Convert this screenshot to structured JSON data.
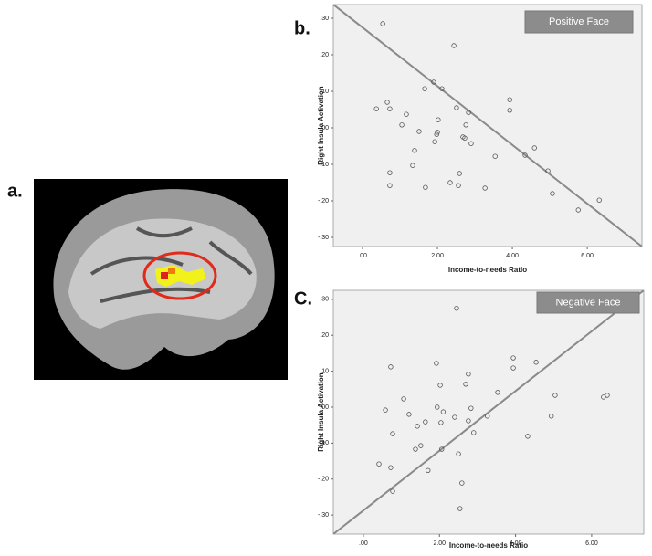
{
  "panel_labels": [
    "a.",
    "b.",
    "C."
  ],
  "chart_data": [
    {
      "type": "scatter",
      "title": "Positive Face",
      "x_label": "Income-to-needs Ratio",
      "y_label": "Right Insula Activation",
      "x": [
        0.54,
        2.44,
        1.9,
        0.66,
        1.66,
        2.12,
        3.93,
        0.73,
        0.37,
        2.51,
        1.17,
        2.83,
        3.93,
        2.02,
        1.05,
        2.76,
        2.0,
        1.98,
        1.51,
        2.68,
        2.73,
        2.9,
        1.93,
        4.59,
        1.39,
        3.54,
        4.34,
        1.34,
        4.95,
        0.73,
        2.59,
        2.34,
        2.56,
        1.68,
        0.73,
        3.27,
        5.07,
        6.32,
        5.76
      ],
      "y": [
        0.285,
        0.225,
        0.125,
        0.07,
        0.107,
        0.107,
        0.077,
        0.052,
        0.052,
        0.055,
        0.037,
        0.042,
        0.048,
        0.022,
        0.008,
        0.008,
        -0.012,
        -0.018,
        -0.01,
        -0.025,
        -0.028,
        -0.043,
        -0.038,
        -0.055,
        -0.062,
        -0.078,
        -0.075,
        -0.103,
        -0.118,
        -0.123,
        -0.125,
        -0.15,
        -0.158,
        -0.163,
        -0.158,
        -0.165,
        -0.18,
        -0.198,
        -0.225
      ],
      "fit_line": {
        "x": [
          -0.78,
          7.46
        ],
        "y": [
          0.3375,
          -0.325
        ]
      },
      "xlim": [
        -0.78,
        7.46
      ],
      "ylim": [
        -0.325,
        0.3375
      ],
      "xticks": [
        {
          "value": 0,
          "label": ".00"
        },
        {
          "value": 2,
          "label": "2.00"
        },
        {
          "value": 4,
          "label": "4.00"
        },
        {
          "value": 6,
          "label": "6.00"
        }
      ],
      "yticks": [
        {
          "value": 0.3,
          "label": ".30"
        },
        {
          "value": 0.2,
          "label": ".20"
        },
        {
          "value": 0.1,
          "label": ".10"
        },
        {
          "value": 0,
          "label": ".00"
        },
        {
          "value": -0.1,
          "label": "-.10"
        },
        {
          "value": -0.2,
          "label": "-.20"
        },
        {
          "value": -0.3,
          "label": "-.30"
        }
      ],
      "grid": false,
      "color": "#555555",
      "line_color": "#8a8a8a"
    },
    {
      "type": "scatter",
      "title": "Negative Face",
      "x_label": "Income-to-needs Ratio",
      "y_label": "Right Insula Activation",
      "x": [
        2.45,
        0.72,
        3.94,
        1.92,
        4.54,
        3.94,
        2.76,
        2.69,
        2.02,
        3.53,
        1.06,
        5.04,
        6.41,
        6.31,
        1.2,
        0.58,
        1.94,
        2.1,
        2.83,
        3.26,
        4.94,
        2.4,
        1.63,
        2.04,
        2.76,
        1.42,
        0.77,
        2.9,
        4.32,
        1.51,
        1.37,
        2.06,
        2.5,
        0.41,
        1.7,
        0.72,
        0.77,
        2.59,
        2.54
      ],
      "y": [
        0.275,
        0.112,
        0.137,
        0.122,
        0.125,
        0.109,
        0.092,
        0.064,
        0.061,
        0.041,
        0.023,
        0.033,
        0.033,
        0.028,
        -0.02,
        -0.008,
        0,
        -0.013,
        -0.003,
        -0.025,
        -0.025,
        -0.028,
        -0.041,
        -0.043,
        -0.038,
        -0.053,
        -0.074,
        -0.071,
        -0.081,
        -0.107,
        -0.117,
        -0.117,
        -0.13,
        -0.158,
        -0.176,
        -0.168,
        -0.234,
        -0.211,
        -0.282
      ],
      "fit_line": {
        "x": [
          -0.79,
          7.37
        ],
        "y": [
          -0.353,
          0.325
        ]
      },
      "xlim": [
        -0.79,
        7.37
      ],
      "ylim": [
        -0.353,
        0.325
      ],
      "xticks": [
        {
          "value": 0,
          "label": ".00"
        },
        {
          "value": 2,
          "label": "2.00"
        },
        {
          "value": 4,
          "label": "4.00"
        },
        {
          "value": 6,
          "label": "6.00"
        }
      ],
      "yticks": [
        {
          "value": 0.3,
          "label": ".30"
        },
        {
          "value": 0.2,
          "label": ".20"
        },
        {
          "value": 0.1,
          "label": ".10"
        },
        {
          "value": 0,
          "label": ".00"
        },
        {
          "value": -0.1,
          "label": "-.10"
        },
        {
          "value": -0.2,
          "label": "-.20"
        },
        {
          "value": -0.3,
          "label": "-.30"
        }
      ],
      "grid": false,
      "color": "#555555",
      "line_color": "#8a8a8a"
    }
  ]
}
